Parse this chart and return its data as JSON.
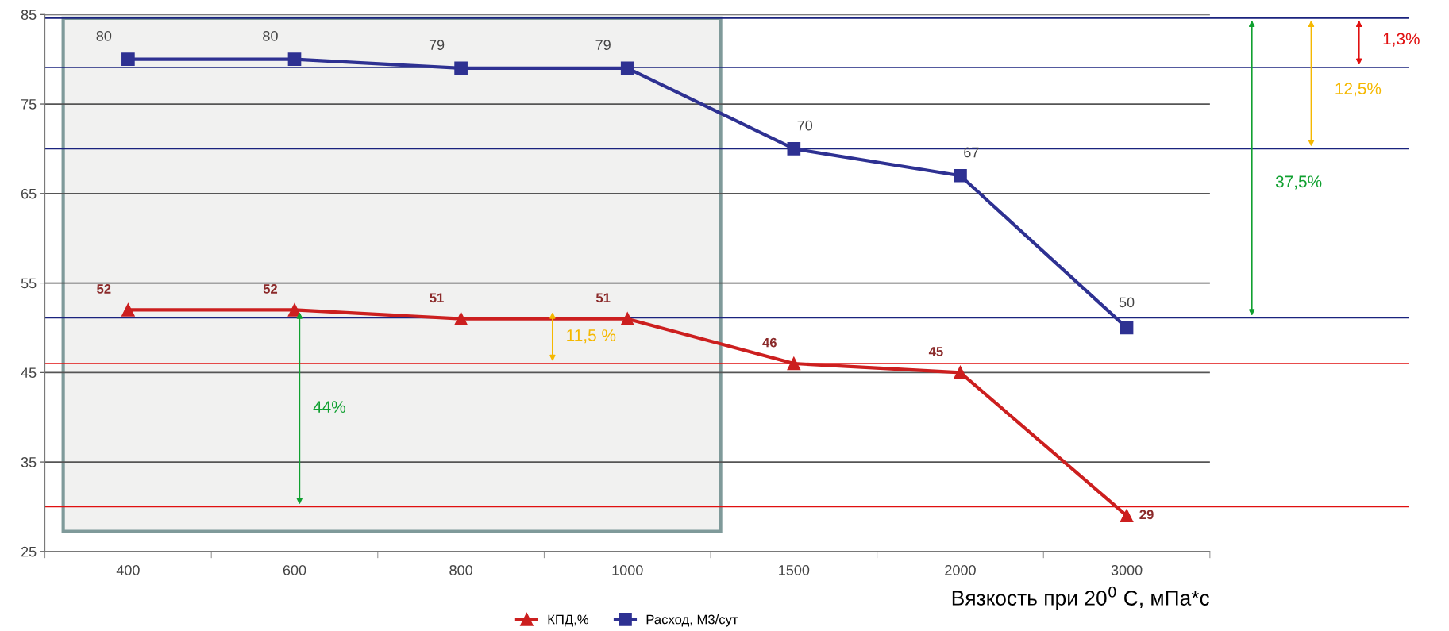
{
  "chart_data": {
    "type": "line",
    "xlabel": "Вязкость при 20$^{0}$ С, мПа*с",
    "categories": [
      "400",
      "600",
      "800",
      "1000",
      "1500",
      "2000",
      "3000"
    ],
    "series": [
      {
        "name": "КПД,%",
        "color": "#cc1f1f",
        "marker": "triangle",
        "values": [
          52,
          52,
          51,
          51,
          46,
          45,
          29
        ]
      },
      {
        "name": "Расход, М3/сут",
        "color": "#2e3192",
        "marker": "square",
        "values": [
          80,
          80,
          79,
          79,
          70,
          67,
          50
        ]
      }
    ],
    "data_labels": true,
    "ylim": [
      25,
      85
    ],
    "yticks": [
      25,
      35,
      45,
      55,
      65,
      75,
      85
    ],
    "grid": "y",
    "legend": "bottom",
    "line_style": "solid",
    "ref_lines": [
      {
        "axis": "y",
        "value": 84.6,
        "color": "#1a237e"
      },
      {
        "axis": "y",
        "value": 79.1,
        "color": "#1a237e"
      },
      {
        "axis": "y",
        "value": 70,
        "color": "#1a237e"
      },
      {
        "axis": "y",
        "value": 51.1,
        "color": "#1a237e"
      },
      {
        "axis": "y",
        "value": 46,
        "color": "#e01010"
      },
      {
        "axis": "y",
        "value": 30,
        "color": "#e01010"
      }
    ],
    "annotations": [
      "1,3%",
      "12,5%",
      "37,5%",
      "11,5 %",
      "44%"
    ]
  }
}
